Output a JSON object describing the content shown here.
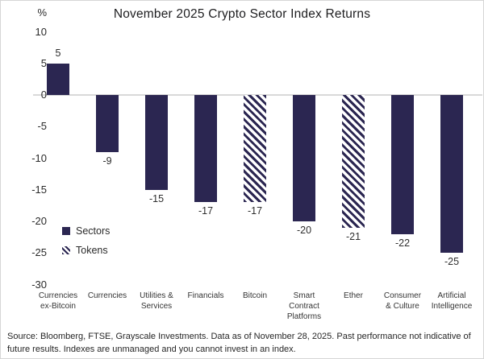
{
  "chart_data": {
    "type": "bar",
    "title": "November 2025 Crypto Sector Index Returns",
    "unit_label": "%",
    "ylabel": "%",
    "ylim": [
      -30,
      10
    ],
    "y_ticks": [
      10,
      5,
      0,
      -5,
      -10,
      -15,
      -20,
      -25,
      -30
    ],
    "grid": "zero-line-only",
    "legend_position": "lower-left",
    "categories": [
      "Currencies ex-Bitcoin",
      "Currencies",
      "Utilities & Services",
      "Financials",
      "Bitcoin",
      "Smart Contract Platforms",
      "Ether",
      "Consumer & Culture",
      "Artificial Intelligence"
    ],
    "label_lines": [
      "Currencies\nex-Bitcoin",
      "Currencies",
      "Utilities &\nServices",
      "Financials",
      "Bitcoin",
      "Smart\nContract\nPlatforms",
      "Ether",
      "Consumer\n& Culture",
      "Artificial\nIntelligence"
    ],
    "values": [
      5,
      -9,
      -15,
      -17,
      -17,
      -20,
      -21,
      -22,
      -25
    ],
    "bar_styles": [
      "solid",
      "solid",
      "solid",
      "solid",
      "hatched",
      "solid",
      "hatched",
      "solid",
      "solid"
    ],
    "legend": [
      {
        "label": "Sectors",
        "pattern": "solid"
      },
      {
        "label": "Tokens",
        "pattern": "hatched"
      }
    ],
    "colors": {
      "bar": "#2b2651",
      "zero_line": "#d9d9d9",
      "background": "#ffffff",
      "text": "#2a2a2a"
    }
  },
  "footer": {
    "source": "Source: Bloomberg, FTSE, Grayscale Investments. Data as of November 28, 2025. Past performance not indicative of future results. Indexes are unmanaged and you cannot invest in an index."
  }
}
